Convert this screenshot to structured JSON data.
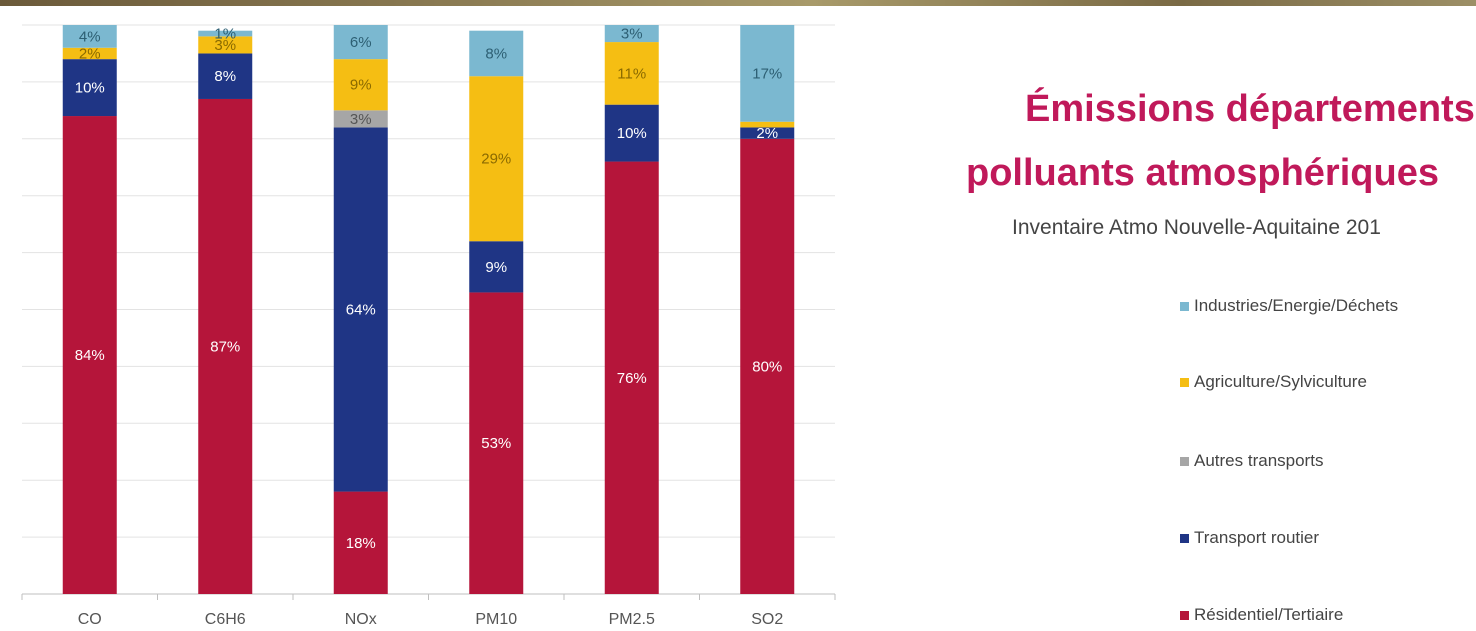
{
  "title_line1": "Émissions départements",
  "title_line2": "polluants atmosphériques",
  "subtitle": "Inventaire Atmo Nouvelle-Aquitaine 201",
  "chart_data": {
    "type": "bar",
    "stacked": true,
    "percent": true,
    "categories": [
      "CO",
      "C6H6",
      "NOx",
      "PM10",
      "PM2.5",
      "SO2"
    ],
    "ylim": [
      0,
      100
    ],
    "grid": true,
    "legend_position": "right",
    "series": [
      {
        "name": "Résidentiel/Tertiaire",
        "color": "#b5153a",
        "values": [
          84,
          87,
          18,
          53,
          76,
          80
        ],
        "labels": [
          "84%",
          "87%",
          "18%",
          "53%",
          "76%",
          "80%"
        ]
      },
      {
        "name": "Transport routier",
        "color": "#1f3585",
        "values": [
          10,
          8,
          64,
          9,
          10,
          2
        ],
        "labels": [
          "10%",
          "8%",
          "64%",
          "9%",
          "10%",
          "2%"
        ]
      },
      {
        "name": "Autres transports",
        "color": "#a6a6a6",
        "values": [
          0,
          0,
          3,
          0,
          0,
          0
        ],
        "labels": [
          "",
          "",
          "3%",
          "",
          "",
          ""
        ]
      },
      {
        "name": "Agriculture/Sylviculture",
        "color": "#f5be13",
        "values": [
          2,
          3,
          9,
          29,
          11,
          1
        ],
        "labels": [
          "2%",
          "3%",
          "9%",
          "29%",
          "11%",
          ""
        ]
      },
      {
        "name": "Industries/Energie/Déchets",
        "color": "#7bb8d0",
        "values": [
          4,
          1,
          6,
          8,
          3,
          17
        ],
        "labels": [
          "4%",
          "1%",
          "6%",
          "8%",
          "3%",
          "17%"
        ]
      }
    ]
  },
  "legend_items": [
    {
      "label": "Industries/Energie/Déchets",
      "color": "#7bb8d0"
    },
    {
      "label": "Agriculture/Sylviculture",
      "color": "#f5be13"
    },
    {
      "label": "Autres transports",
      "color": "#a6a6a6"
    },
    {
      "label": "Transport routier",
      "color": "#1f3585"
    },
    {
      "label": "Résidentiel/Tertiaire",
      "color": "#b5153a"
    }
  ]
}
